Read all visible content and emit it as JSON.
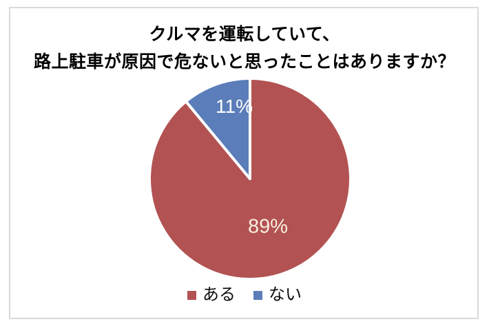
{
  "title": {
    "line1": "クルマを運転していて、",
    "line2": "路上駐車が原因で危ないと思ったことはありますか？"
  },
  "chart_data": {
    "type": "pie",
    "title": "クルマを運転していて、路上駐車が原因で危ないと思ったことはありますか？",
    "categories": [
      "ある",
      "ない"
    ],
    "values": [
      89,
      11
    ],
    "unit": "%",
    "legend_position": "bottom",
    "start_angle_deg": 0,
    "direction": "clockwise",
    "segments": [
      {
        "label": "ある",
        "value": 89,
        "display_label": "89%",
        "color": "#B25252",
        "label_color": "#F8EFE1",
        "name_en": "aru-yes"
      },
      {
        "label": "ない",
        "value": 11,
        "display_label": "11%",
        "color": "#5B7DB9",
        "label_color": "#FFFFFF",
        "name_en": "nai-no"
      }
    ]
  },
  "colors": {
    "background": "#FFFFFF",
    "frame_border": "#D9D9D9",
    "title_text": "#000000",
    "slice_separator": "#FFFFFF"
  }
}
